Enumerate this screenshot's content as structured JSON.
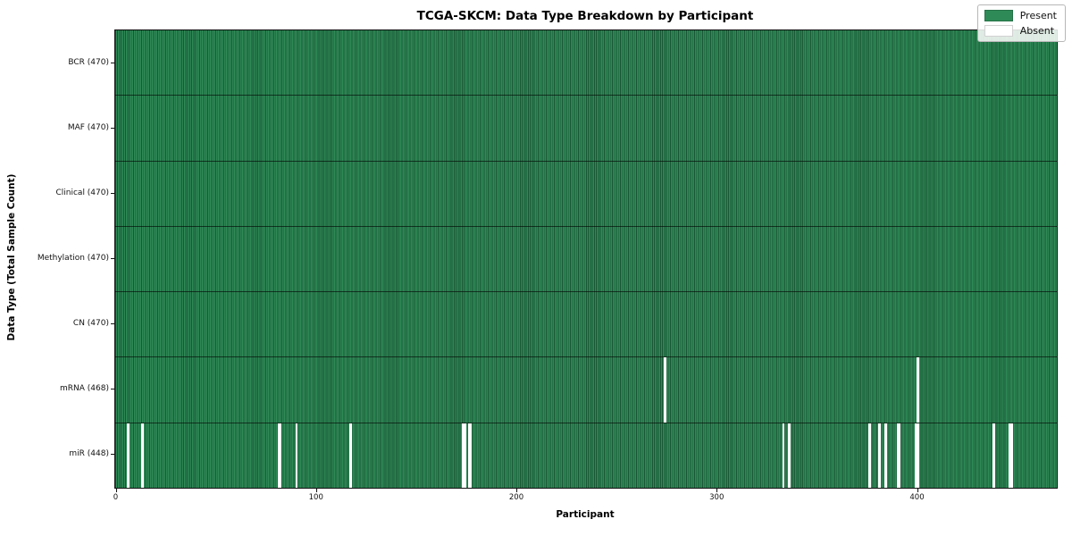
{
  "figure": {
    "title": "TCGA-SKCM: Data Type Breakdown by Participant",
    "xlabel": "Participant",
    "ylabel": "Data Type (Total Sample Count)"
  },
  "legend": {
    "present_label": "Present",
    "absent_label": "Absent"
  },
  "colors": {
    "present": "#2e8b57",
    "absent": "#ffffff",
    "cell_edge": "rgba(8,32,18,0.5)",
    "row_separator": "rgba(0,0,0,0.6)",
    "plot_border": "#111111"
  },
  "chart_data": {
    "type": "heatmap",
    "title": "TCGA-SKCM: Data Type Breakdown by Participant",
    "xlabel": "Participant",
    "ylabel": "Data Type (Total Sample Count)",
    "x_range": [
      0,
      470
    ],
    "n_participants": 470,
    "x_ticks": [
      0,
      100,
      200,
      300,
      400
    ],
    "legend": [
      "Present",
      "Absent"
    ],
    "legend_position": "upper right",
    "rows": [
      {
        "label": "BCR (470)",
        "data_type": "BCR",
        "present_count": 470,
        "absent_participants": []
      },
      {
        "label": "MAF (470)",
        "data_type": "MAF",
        "present_count": 470,
        "absent_participants": []
      },
      {
        "label": "Clinical (470)",
        "data_type": "Clinical",
        "present_count": 470,
        "absent_participants": []
      },
      {
        "label": "Methylation (470)",
        "data_type": "Methylation",
        "present_count": 470,
        "absent_participants": []
      },
      {
        "label": "CN (470)",
        "data_type": "CN",
        "present_count": 470,
        "absent_participants": []
      },
      {
        "label": "mRNA (468)",
        "data_type": "mRNA",
        "present_count": 468,
        "absent_participants": [
          274,
          400
        ]
      },
      {
        "label": "miR (448)",
        "data_type": "miR",
        "present_count": 448,
        "absent_participants": [
          6,
          13,
          81,
          82,
          90,
          117,
          173,
          174,
          176,
          177,
          333,
          336,
          376,
          381,
          384,
          390,
          391,
          399,
          400,
          438,
          446,
          447
        ]
      }
    ]
  }
}
